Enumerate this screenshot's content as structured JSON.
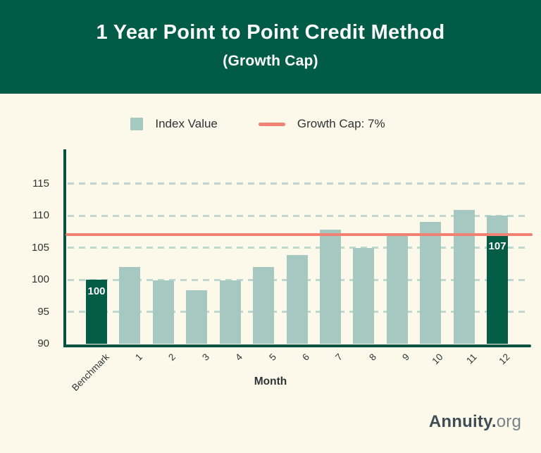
{
  "header": {
    "title": "1 Year Point to Point Credit Method",
    "subtitle": "(Growth Cap)"
  },
  "legend": {
    "index_label": "Index Value",
    "cap_label": "Growth Cap: 7%"
  },
  "footer": {
    "brand_bold": "Annuity.",
    "brand_light": "org"
  },
  "colors": {
    "background": "#FCF9EB",
    "banner_green": "#005C46",
    "bar_index": "#A5C8C1",
    "bar_benchmark": "#035C46",
    "cap_line": "#F08173",
    "gridline": "#BDD7D1",
    "axis": "#01543F",
    "text_dark": "#2E3436",
    "logo_dark": "#3E4E54",
    "logo_light": "#75838A"
  },
  "chart_data": {
    "type": "bar",
    "title": "1 Year Point to Point Credit Method",
    "subtitle": "(Growth Cap)",
    "xlabel": "Month",
    "ylabel": "",
    "ylim": [
      90,
      120
    ],
    "yticks": [
      90,
      95,
      100,
      105,
      110,
      115
    ],
    "grid": true,
    "legend_position": "top",
    "legend_entries": [
      "Index Value",
      "Growth Cap: 7%"
    ],
    "cap_line": {
      "value": 107,
      "label": "Growth Cap: 7%"
    },
    "categories": [
      "Benchmark",
      "1",
      "2",
      "3",
      "4",
      "5",
      "6",
      "7",
      "8",
      "9",
      "10",
      "11",
      "12"
    ],
    "values": [
      100,
      102,
      99.9,
      98.3,
      99.9,
      102,
      103.8,
      107.8,
      104.9,
      107,
      109,
      110.9,
      110
    ],
    "bars": [
      {
        "category": "Benchmark",
        "value": 100,
        "style": "benchmark",
        "label": "100"
      },
      {
        "category": "1",
        "value": 102,
        "style": "index"
      },
      {
        "category": "2",
        "value": 99.9,
        "style": "index"
      },
      {
        "category": "3",
        "value": 98.3,
        "style": "index"
      },
      {
        "category": "4",
        "value": 99.9,
        "style": "index"
      },
      {
        "category": "5",
        "value": 102,
        "style": "index"
      },
      {
        "category": "6",
        "value": 103.8,
        "style": "index"
      },
      {
        "category": "7",
        "value": 107.8,
        "style": "index"
      },
      {
        "category": "8",
        "value": 104.9,
        "style": "index"
      },
      {
        "category": "9",
        "value": 107,
        "style": "index"
      },
      {
        "category": "10",
        "value": 109,
        "style": "index"
      },
      {
        "category": "11",
        "value": 110.9,
        "style": "index"
      },
      {
        "category": "12",
        "value": 110,
        "style": "capped",
        "cap_value": 107,
        "label": "107"
      }
    ]
  }
}
